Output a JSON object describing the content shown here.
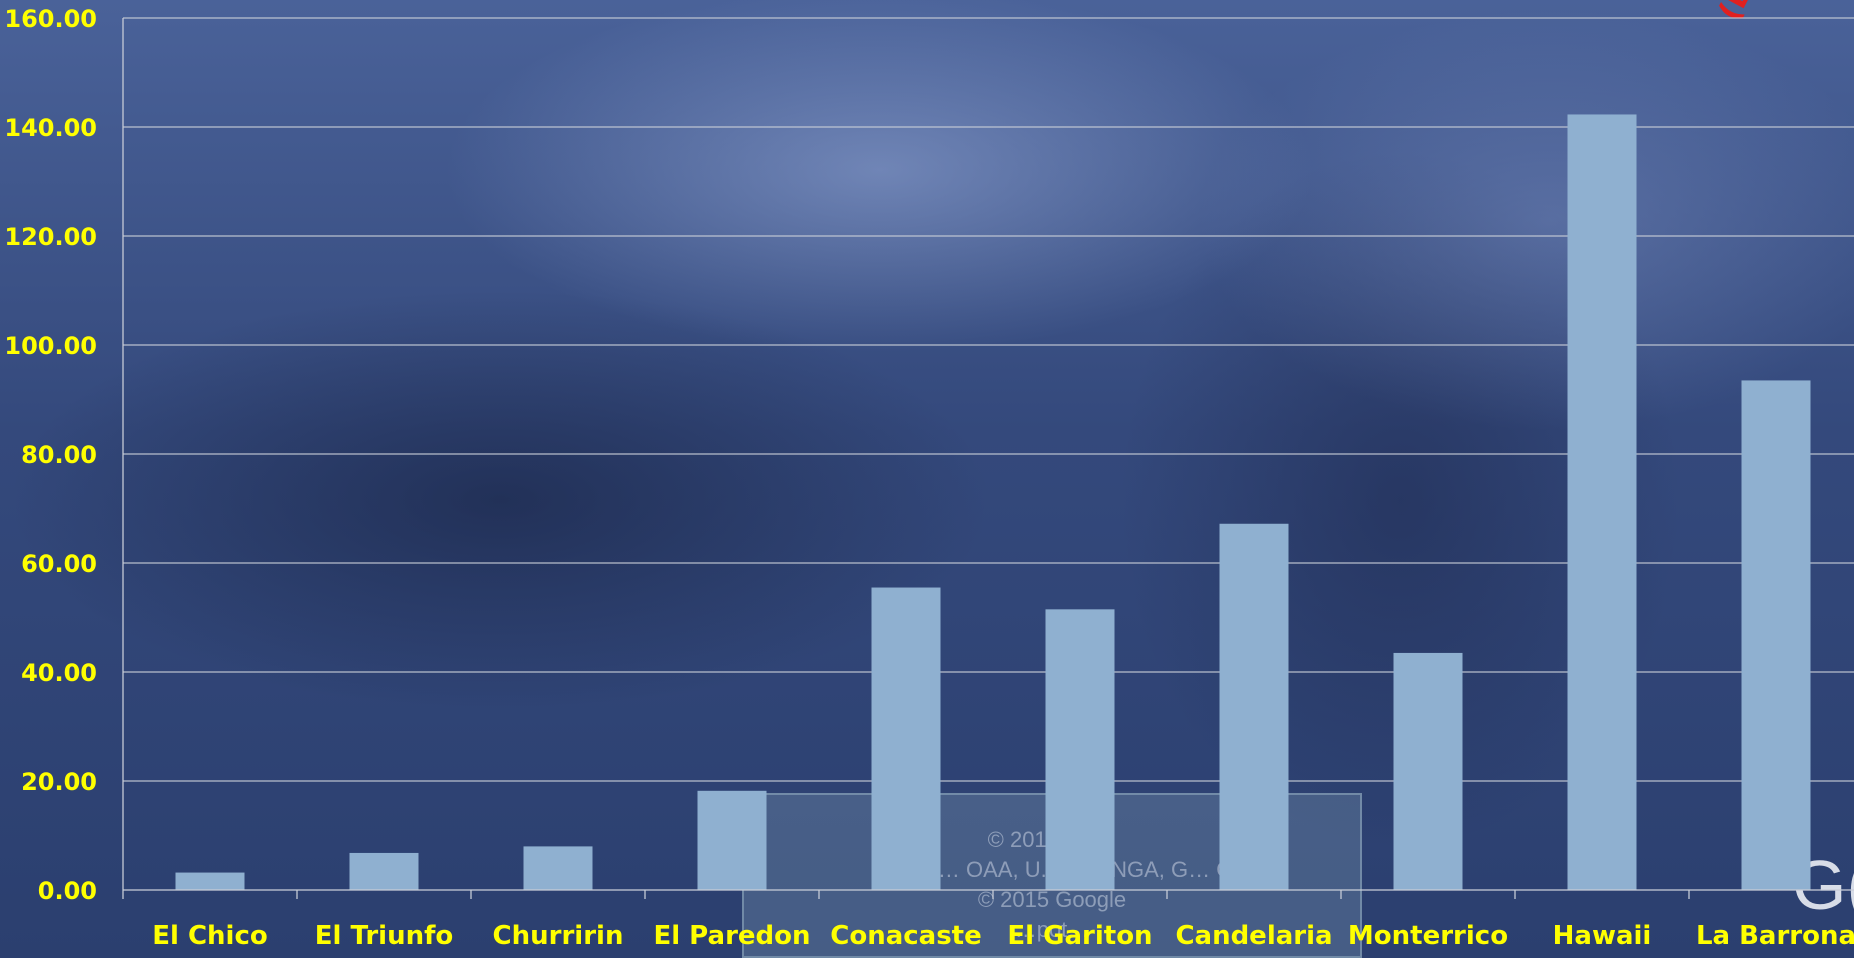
{
  "chart_data": {
    "type": "bar",
    "categories": [
      "El Chico",
      "El Triunfo",
      "Churririn",
      "El Paredon",
      "Conacaste",
      "El Gariton",
      "Candelaria",
      "Monterrico",
      "Hawaii",
      "La Barrona"
    ],
    "values": [
      3.2,
      6.8,
      8.0,
      18.2,
      55.5,
      51.5,
      67.2,
      43.5,
      142.3,
      93.5
    ],
    "yticks": [
      "0.00",
      "20.00",
      "40.00",
      "60.00",
      "80.00",
      "100.00",
      "120.00",
      "140.00",
      "160.00"
    ],
    "ylim": [
      0,
      160
    ],
    "grid": true,
    "bar_color": "#8fb0d0",
    "tick_label_color": "#ffff00",
    "category_label_color": "#ffff00"
  },
  "background": {
    "watermark_lines": [
      "© 2015 … GI",
      "Data S… OAA, U.S… y, NGA, G… O",
      "© 2015 Google",
      "…pot…"
    ],
    "corner_mark": "(E",
    "corner_logo": "G("
  }
}
